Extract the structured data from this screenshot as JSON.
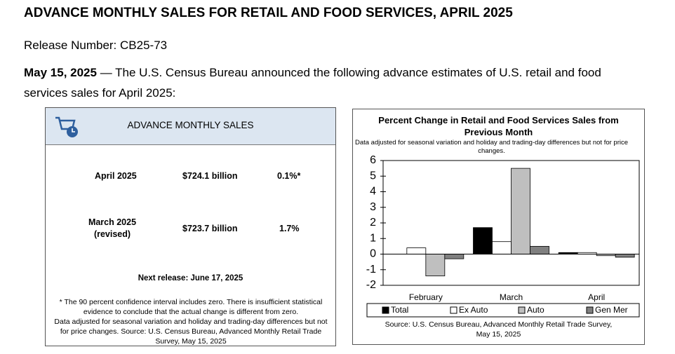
{
  "header": {
    "title": "ADVANCE MONTHLY SALES FOR RETAIL AND FOOD SERVICES, APRIL 2025",
    "release": "Release Number: CB25-73"
  },
  "intro": {
    "date": "May 15, 2025",
    "text": "— The U.S. Census Bureau announced the following advance estimates of U.S. retail and food services sales for April 2025:"
  },
  "panel": {
    "title": "ADVANCE MONTHLY SALES",
    "rows": [
      {
        "label": "April 2025",
        "value": "$724.1 billion",
        "change": "0.1%*"
      },
      {
        "label": "March 2025",
        "note": "(revised)",
        "value": "$723.7 billion",
        "change": "1.7%"
      }
    ],
    "next_release": "Next release: June 17, 2025",
    "footnote": [
      "* The 90 percent confidence interval includes zero. There is insufficient statistical evidence to conclude that the actual change is different from zero.",
      "Data adjusted for seasonal variation and holiday and trading-day differences but not for price changes. Source: U.S. Census Bureau, Advanced Monthly Retail Trade Survey, May 15, 2025"
    ]
  },
  "chart_data": {
    "type": "bar",
    "title": "Percent Change in Retail and Food Services Sales from Previous Month",
    "subtitle": "Data adjusted for seasonal variation and holiday and trading-day differences but not for price changes.",
    "source": "Source: U.S. Census Bureau, Advanced Monthly Retail Trade Survey, May 15, 2025",
    "categories": [
      "February",
      "March",
      "April"
    ],
    "series": [
      {
        "name": "Total",
        "color": "#000000",
        "values": [
          0,
          1.7,
          0.1
        ]
      },
      {
        "name": "Ex Auto",
        "color": "#ffffff",
        "values": [
          0.4,
          0.8,
          0.1
        ]
      },
      {
        "name": "Auto",
        "color": "#bfbfbf",
        "values": [
          -1.4,
          5.5,
          -0.1
        ]
      },
      {
        "name": "Gen Mer",
        "color": "#808080",
        "values": [
          -0.3,
          0.5,
          -0.2
        ]
      }
    ],
    "ylim": [
      -2,
      6
    ],
    "yticks": [
      -2,
      -1,
      0,
      1,
      2,
      3,
      4,
      5,
      6
    ],
    "grid": false,
    "legend": "bottom"
  }
}
